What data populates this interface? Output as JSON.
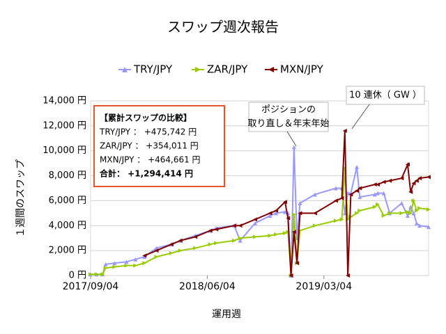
{
  "chart_data": {
    "type": "line",
    "title": "スワップ週次報告",
    "x_label": "運用週",
    "y_label": "１週間のスワップ",
    "x": [
      0,
      2,
      4,
      5,
      8,
      12,
      15,
      18,
      22,
      27,
      30,
      35,
      40,
      42,
      48,
      50,
      55,
      60,
      62,
      65,
      66,
      67,
      68,
      69,
      70,
      75,
      82,
      84,
      85,
      86,
      87,
      89,
      90,
      95,
      96,
      98,
      100,
      104,
      106,
      107,
      108,
      109,
      110,
      113
    ],
    "xlim": [
      0,
      113
    ],
    "xticks": [
      {
        "value": 0,
        "label": "2017/09/04"
      },
      {
        "value": 39,
        "label": "2018/06/04"
      },
      {
        "value": 78,
        "label": "2019/03/04"
      }
    ],
    "ylim": [
      0,
      14000
    ],
    "yticks": [
      {
        "value": 0,
        "label": "0 円"
      },
      {
        "value": 2000,
        "label": "2,000 円"
      },
      {
        "value": 4000,
        "label": "4,000 円"
      },
      {
        "value": 6000,
        "label": "6,000 円"
      },
      {
        "value": 8000,
        "label": "8,000 円"
      },
      {
        "value": 10000,
        "label": "10,000 円"
      },
      {
        "value": 12000,
        "label": "12,000 円"
      },
      {
        "value": 14000,
        "label": "14,000 円"
      }
    ],
    "grid": true,
    "legend": "top",
    "series": [
      {
        "name": "TRY/JPY",
        "color": "#9999ff",
        "marker": "triangle-up",
        "values": [
          100,
          100,
          100,
          900,
          1000,
          1100,
          1300,
          1500,
          2200,
          2500,
          2800,
          3200,
          3600,
          3800,
          4000,
          2800,
          4200,
          4800,
          5000,
          5100,
          5000,
          0,
          10300,
          3000,
          5800,
          6500,
          7000,
          7000,
          5000,
          6600,
          6600,
          8700,
          6300,
          6500,
          6600,
          6600,
          5000,
          5800,
          4800,
          5500,
          5000,
          4200,
          4000,
          3900
        ]
      },
      {
        "name": "ZAR/JPY",
        "color": "#99cc00",
        "marker": "triangle-right",
        "values": [
          100,
          100,
          100,
          600,
          700,
          800,
          800,
          1000,
          1500,
          1800,
          2000,
          2200,
          2500,
          2600,
          2800,
          3000,
          3100,
          3200,
          3300,
          3400,
          3500,
          0,
          4900,
          1000,
          3600,
          4000,
          4400,
          4500,
          8600,
          4500,
          4700,
          5000,
          5200,
          5500,
          5700,
          4800,
          5000,
          5000,
          5100,
          5000,
          6000,
          5200,
          5400,
          5300
        ]
      },
      {
        "name": "MXN/JPY",
        "color": "#800000",
        "marker": "triangle-left",
        "values": [
          null,
          null,
          null,
          null,
          null,
          null,
          null,
          1600,
          2000,
          2500,
          2800,
          3100,
          3600,
          3700,
          4000,
          4000,
          4500,
          5000,
          5200,
          5900,
          4600,
          0,
          3500,
          1000,
          5000,
          5000,
          6000,
          6200,
          11600,
          0,
          6500,
          6800,
          7000,
          7300,
          7300,
          7500,
          7600,
          7800,
          8900,
          6700,
          7400,
          7600,
          7800,
          7900
        ]
      }
    ],
    "summary_box": [
      "【累計スワップの比較】",
      "TRY/JPY ： +475,742 円",
      "ZAR/JPY ： +354,011 円",
      "MXN/JPY ： +464,661 円",
      "合計： +1,294,414 円"
    ],
    "annotations": [
      {
        "lines": [
          "ポジションの",
          "取り直し＆年末年始"
        ]
      },
      {
        "lines": [
          "10 連休（ GW ）"
        ]
      }
    ]
  }
}
